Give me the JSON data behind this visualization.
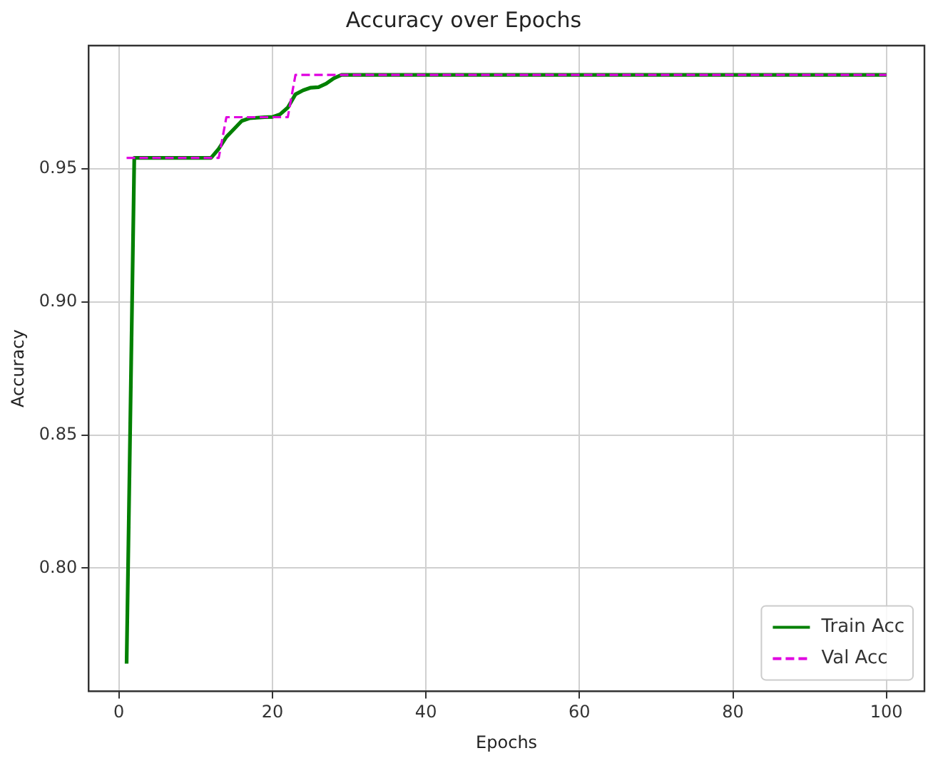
{
  "chart_data": {
    "type": "line",
    "title": "Accuracy over Epochs",
    "xlabel": "Epochs",
    "ylabel": "Accuracy",
    "x": [
      1,
      2,
      3,
      4,
      5,
      6,
      7,
      8,
      9,
      10,
      11,
      12,
      13,
      14,
      15,
      16,
      17,
      18,
      19,
      20,
      21,
      22,
      23,
      24,
      25,
      26,
      27,
      28,
      29,
      30,
      31,
      32,
      33,
      34,
      35,
      36,
      37,
      38,
      39,
      40,
      41,
      42,
      43,
      44,
      45,
      46,
      47,
      48,
      49,
      50,
      51,
      52,
      53,
      54,
      55,
      56,
      57,
      58,
      59,
      60,
      61,
      62,
      63,
      64,
      65,
      66,
      67,
      68,
      69,
      70,
      71,
      72,
      73,
      74,
      75,
      76,
      77,
      78,
      79,
      80,
      81,
      82,
      83,
      84,
      85,
      86,
      87,
      88,
      89,
      90,
      91,
      92,
      93,
      94,
      95,
      96,
      97,
      98,
      99,
      100
    ],
    "series": [
      {
        "name": "Train Acc",
        "color": "#008000",
        "line_style": "solid",
        "values": [
          0.7641,
          0.9541,
          0.9541,
          0.9541,
          0.9541,
          0.9541,
          0.9541,
          0.9541,
          0.9541,
          0.9541,
          0.9541,
          0.9541,
          0.9575,
          0.962,
          0.965,
          0.968,
          0.969,
          0.9692,
          0.9694,
          0.9695,
          0.9705,
          0.973,
          0.978,
          0.9795,
          0.9805,
          0.9807,
          0.982,
          0.984,
          0.9853,
          0.9853,
          0.9853,
          0.9853,
          0.9853,
          0.9853,
          0.9853,
          0.9853,
          0.9853,
          0.9853,
          0.9853,
          0.9853,
          0.9853,
          0.9853,
          0.9853,
          0.9853,
          0.9853,
          0.9853,
          0.9853,
          0.9853,
          0.9853,
          0.9853,
          0.9853,
          0.9853,
          0.9853,
          0.9853,
          0.9853,
          0.9853,
          0.9853,
          0.9853,
          0.9853,
          0.9853,
          0.9853,
          0.9853,
          0.9853,
          0.9853,
          0.9853,
          0.9853,
          0.9853,
          0.9853,
          0.9853,
          0.9853,
          0.9853,
          0.9853,
          0.9853,
          0.9853,
          0.9853,
          0.9853,
          0.9853,
          0.9853,
          0.9853,
          0.9853,
          0.9853,
          0.9853,
          0.9853,
          0.9853,
          0.9853,
          0.9853,
          0.9853,
          0.9853,
          0.9853,
          0.9853,
          0.9853,
          0.9853,
          0.9853,
          0.9853,
          0.9853,
          0.9853,
          0.9853,
          0.9853,
          0.9853,
          0.9853
        ]
      },
      {
        "name": "Val Acc",
        "color": "#e000e0",
        "line_style": "dashed",
        "values": [
          0.9541,
          0.9541,
          0.9541,
          0.9541,
          0.9541,
          0.9541,
          0.9541,
          0.9541,
          0.9541,
          0.9541,
          0.9541,
          0.9541,
          0.9541,
          0.9694,
          0.9694,
          0.9694,
          0.9694,
          0.9694,
          0.9694,
          0.9694,
          0.9694,
          0.9694,
          0.9853,
          0.9853,
          0.9853,
          0.9853,
          0.9853,
          0.9853,
          0.9853,
          0.9853,
          0.9853,
          0.9853,
          0.9853,
          0.9853,
          0.9853,
          0.9853,
          0.9853,
          0.9853,
          0.9853,
          0.9853,
          0.9853,
          0.9853,
          0.9853,
          0.9853,
          0.9853,
          0.9853,
          0.9853,
          0.9853,
          0.9853,
          0.9853,
          0.9853,
          0.9853,
          0.9853,
          0.9853,
          0.9853,
          0.9853,
          0.9853,
          0.9853,
          0.9853,
          0.9853,
          0.9853,
          0.9853,
          0.9853,
          0.9853,
          0.9853,
          0.9853,
          0.9853,
          0.9853,
          0.9853,
          0.9853,
          0.9853,
          0.9853,
          0.9853,
          0.9853,
          0.9853,
          0.9853,
          0.9853,
          0.9853,
          0.9853,
          0.9853,
          0.9853,
          0.9853,
          0.9853,
          0.9853,
          0.9853,
          0.9853,
          0.9853,
          0.9853,
          0.9853,
          0.9853,
          0.9853,
          0.9853,
          0.9853,
          0.9853,
          0.9853,
          0.9853,
          0.9853,
          0.9853,
          0.9853,
          0.9853
        ]
      }
    ],
    "xlim": [
      -3.95,
      104.95
    ],
    "xticks": [
      0,
      20,
      40,
      60,
      80,
      100
    ],
    "ylim": [
      0.7537,
      0.9963
    ],
    "yticks": [
      {
        "value": 0.8,
        "label": "0.80"
      },
      0.85,
      {
        "value": 0.9,
        "label": "0.90"
      },
      0.95
    ],
    "grid": true,
    "legend": "bottom right",
    "marker": "none"
  }
}
